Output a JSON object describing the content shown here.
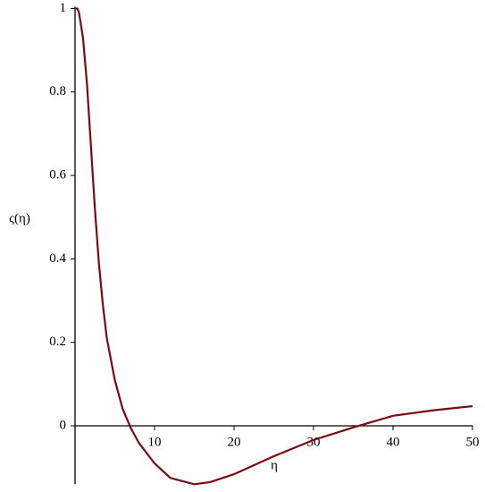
{
  "chart_data": {
    "type": "line",
    "x_label": "η",
    "y_label": "ς(η)",
    "x": [
      0,
      0.3,
      0.5,
      1,
      1.5,
      2,
      2.5,
      3,
      3.5,
      4,
      5,
      6,
      7,
      8,
      10,
      12,
      15,
      17,
      20,
      25,
      30,
      35,
      40,
      45,
      50
    ],
    "series": [
      {
        "name": "ς(η)",
        "color": "#7a0a12",
        "values": [
          1,
          1,
          0.99,
          0.93,
          0.82,
          0.67,
          0.52,
          0.39,
          0.29,
          0.21,
          0.11,
          0.04,
          -0.005,
          -0.04,
          -0.09,
          -0.125,
          -0.14,
          -0.135,
          -0.116,
          -0.073,
          -0.034,
          -0.004,
          0.024,
          0.037,
          0.047
        ]
      }
    ],
    "xlim": [
      0,
      50
    ],
    "xticks": [
      10,
      20,
      30,
      40,
      50
    ],
    "ylim": [
      -0.14,
      1
    ],
    "yticks": [
      0,
      0.2,
      0.4,
      0.6,
      0.8,
      1
    ],
    "grid": false
  }
}
